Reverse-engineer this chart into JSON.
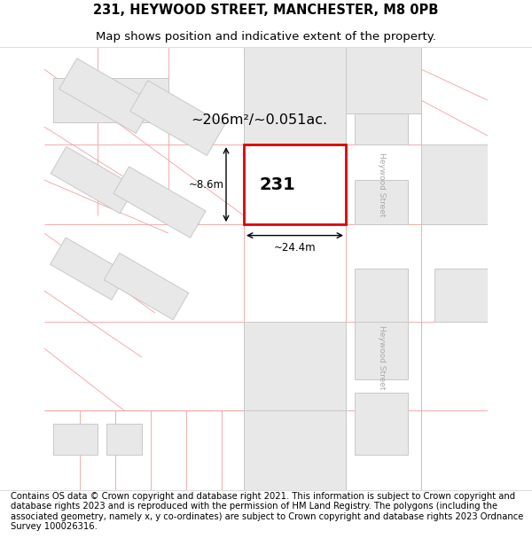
{
  "title_line1": "231, HEYWOOD STREET, MANCHESTER, M8 0PB",
  "title_line2": "Map shows position and indicative extent of the property.",
  "footer_text": "Contains OS data © Crown copyright and database right 2021. This information is subject to Crown copyright and database rights 2023 and is reproduced with the permission of HM Land Registry. The polygons (including the associated geometry, namely x, y co-ordinates) are subject to Crown copyright and database rights 2023 Ordnance Survey 100026316.",
  "area_text": "~206m²/~0.051ac.",
  "width_text": "~24.4m",
  "height_text": "~8.6m",
  "property_label": "231",
  "street_label": "Heywood Street",
  "background_color": "#ffffff",
  "map_bg_color": "#ffffff",
  "highlight_fill": "#ffffff",
  "highlight_border": "#dd0000",
  "building_fill": "#e8e8e8",
  "building_border": "#c8c8c8",
  "street_line_color": "#f0a0a0",
  "title_fontsize": 10.5,
  "subtitle_fontsize": 9.5,
  "footer_fontsize": 7.2
}
